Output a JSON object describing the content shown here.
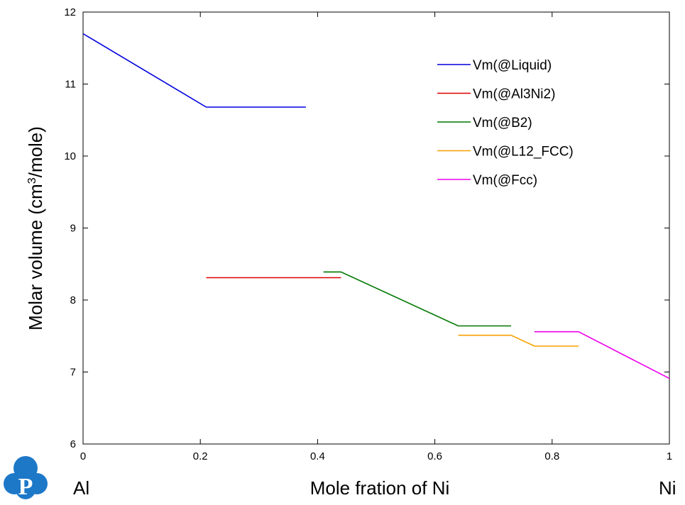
{
  "chart_data": {
    "type": "line",
    "title": "",
    "xlabel": "Mole fration of Ni",
    "ylabel_prefix": "Molar volume (cm",
    "ylabel_sup": "3",
    "ylabel_suffix": "/mole)",
    "xlim": [
      0,
      1
    ],
    "ylim": [
      6,
      12
    ],
    "x_ticks": [
      0,
      0.2,
      0.4,
      0.6,
      0.8,
      1
    ],
    "x_tick_labels": [
      "0",
      "0.2",
      "0.4",
      "0.6",
      "0.8",
      "1"
    ],
    "y_ticks": [
      6,
      7,
      8,
      9,
      10,
      11,
      12
    ],
    "y_tick_labels": [
      "6",
      "7",
      "8",
      "9",
      "10",
      "11",
      "12"
    ],
    "x_end_labels": {
      "left": "Al",
      "right": "Ni"
    },
    "legend_position": "top-right",
    "series": [
      {
        "name": "Vm(@Liquid)",
        "color": "#0000dd",
        "x": [
          0,
          0.21,
          0.38
        ],
        "y": [
          11.7,
          10.68,
          10.68
        ]
      },
      {
        "name": "Vm(@Al3Ni2)",
        "color": "#dd0000",
        "x": [
          0.21,
          0.44
        ],
        "y": [
          8.31,
          8.31
        ]
      },
      {
        "name": "Vm(@B2)",
        "color": "#007700",
        "x": [
          0.41,
          0.44,
          0.64,
          0.73
        ],
        "y": [
          8.39,
          8.39,
          7.64,
          7.64
        ]
      },
      {
        "name": "Vm(@L12_FCC)",
        "color": "#f5a000",
        "x": [
          0.64,
          0.73,
          0.77,
          0.845
        ],
        "y": [
          7.51,
          7.51,
          7.36,
          7.36
        ]
      },
      {
        "name": "Vm(@Fcc)",
        "color": "#ee00ee",
        "x": [
          0.77,
          0.845,
          1.0
        ],
        "y": [
          7.56,
          7.56,
          6.91
        ]
      }
    ]
  },
  "logo": {
    "letter": "P",
    "color": "#1e78c8"
  }
}
